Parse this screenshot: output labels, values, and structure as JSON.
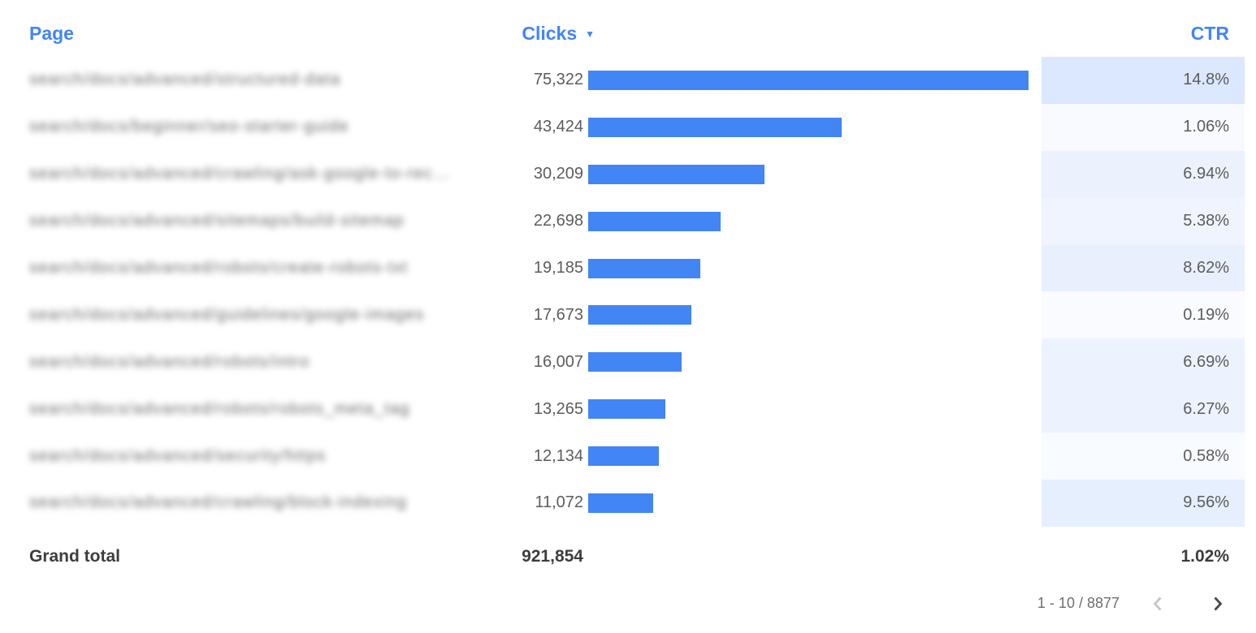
{
  "table": {
    "columns": {
      "page": "Page",
      "clicks": "Clicks",
      "ctr": "CTR"
    },
    "sort": {
      "column": "Clicks",
      "direction": "desc"
    },
    "page_column_blurred": true,
    "rows": [
      {
        "page": "search/docs/advanced/structured-data",
        "clicks": "75,322",
        "clicks_value": 75322,
        "ctr": "14.8%",
        "ctr_value": 14.8
      },
      {
        "page": "search/docs/beginner/seo-starter-guide",
        "clicks": "43,424",
        "clicks_value": 43424,
        "ctr": "1.06%",
        "ctr_value": 1.06
      },
      {
        "page": "search/docs/advanced/crawling/ask-google-to-rec…",
        "clicks": "30,209",
        "clicks_value": 30209,
        "ctr": "6.94%",
        "ctr_value": 6.94
      },
      {
        "page": "search/docs/advanced/sitemaps/build-sitemap",
        "clicks": "22,698",
        "clicks_value": 22698,
        "ctr": "5.38%",
        "ctr_value": 5.38
      },
      {
        "page": "search/docs/advanced/robots/create-robots-txt",
        "clicks": "19,185",
        "clicks_value": 19185,
        "ctr": "8.62%",
        "ctr_value": 8.62
      },
      {
        "page": "search/docs/advanced/guidelines/google-images",
        "clicks": "17,673",
        "clicks_value": 17673,
        "ctr": "0.19%",
        "ctr_value": 0.19
      },
      {
        "page": "search/docs/advanced/robots/intro",
        "clicks": "16,007",
        "clicks_value": 16007,
        "ctr": "6.69%",
        "ctr_value": 6.69
      },
      {
        "page": "search/docs/advanced/robots/robots_meta_tag",
        "clicks": "13,265",
        "clicks_value": 13265,
        "ctr": "6.27%",
        "ctr_value": 6.27
      },
      {
        "page": "search/docs/advanced/security/https",
        "clicks": "12,134",
        "clicks_value": 12134,
        "ctr": "0.58%",
        "ctr_value": 0.58
      },
      {
        "page": "search/docs/advanced/crawling/block-indexing",
        "clicks": "11,072",
        "clicks_value": 11072,
        "ctr": "9.56%",
        "ctr_value": 9.56
      }
    ],
    "grand_total": {
      "label": "Grand total",
      "clicks": "921,854",
      "ctr": "1.02%"
    }
  },
  "pagination": {
    "range_label": "1 - 10 / 8877",
    "prev_enabled": false,
    "next_enabled": true
  },
  "colors": {
    "accent": "#4285f4",
    "bar": "#4285f4",
    "value_text": "#5c5c5c",
    "total_text": "#3d3d3d",
    "pagination_text": "#6e6e6e",
    "chevron_enabled": "#4a4a4a",
    "chevron_disabled": "#c6c6c6",
    "heatmap": {
      "rgb": "66,133,244",
      "alpha_min": 0.03,
      "alpha_max": 0.19
    }
  },
  "chart_data": {
    "type": "table",
    "title": "",
    "columns": [
      "Page",
      "Clicks",
      "CTR"
    ],
    "sort": {
      "column": "Clicks",
      "direction": "desc"
    },
    "rows": [
      {
        "page": "search/docs/advanced/structured-data (blurred)",
        "clicks": 75322,
        "ctr_pct": 14.8
      },
      {
        "page": "search/docs/beginner/seo-starter-guide (blurred)",
        "clicks": 43424,
        "ctr_pct": 1.06
      },
      {
        "page": "search/docs/advanced/crawling/ask-google-to-rec… (blurred)",
        "clicks": 30209,
        "ctr_pct": 6.94
      },
      {
        "page": "search/docs/advanced/sitemaps/build-sitemap (blurred)",
        "clicks": 22698,
        "ctr_pct": 5.38
      },
      {
        "page": "search/docs/advanced/robots/create-robots-txt (blurred)",
        "clicks": 19185,
        "ctr_pct": 8.62
      },
      {
        "page": "search/docs/advanced/guidelines/google-images (blurred)",
        "clicks": 17673,
        "ctr_pct": 0.19
      },
      {
        "page": "search/docs/advanced/robots/intro (blurred)",
        "clicks": 16007,
        "ctr_pct": 6.69
      },
      {
        "page": "search/docs/advanced/robots/robots_meta_tag (blurred)",
        "clicks": 13265,
        "ctr_pct": 6.27
      },
      {
        "page": "search/docs/advanced/security/https (blurred)",
        "clicks": 12134,
        "ctr_pct": 0.58
      },
      {
        "page": "search/docs/advanced/crawling/block-indexing (blurred)",
        "clicks": 11072,
        "ctr_pct": 9.56
      }
    ],
    "bar_encoding": {
      "column": "Clicks",
      "max_value": 75322,
      "color": "#4285f4"
    },
    "heatmap_encoding": {
      "column": "CTR",
      "max_value": 14.8,
      "base_color": "#4285f4"
    },
    "grand_total": {
      "clicks": 921854,
      "ctr_pct": 1.02
    },
    "pagination": {
      "start": 1,
      "end": 10,
      "total": 8877
    }
  }
}
